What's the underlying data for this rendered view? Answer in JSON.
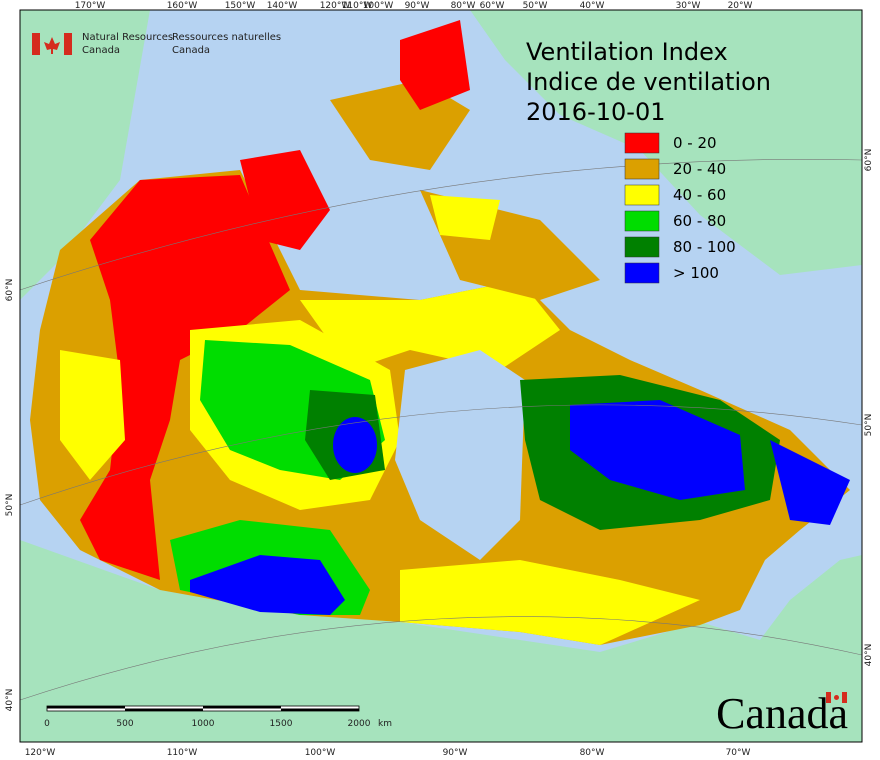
{
  "header": {
    "agency_en": [
      "Natural Resources",
      "Canada"
    ],
    "agency_fr": [
      "Ressources naturelles",
      "Canada"
    ]
  },
  "title": {
    "lines": [
      "Ventilation Index",
      "Indice de ventilation",
      "2016-10-01"
    ]
  },
  "legend": [
    {
      "label": "0 - 20",
      "color": "#ff0000"
    },
    {
      "label": "20 - 40",
      "color": "#dba000"
    },
    {
      "label": "40 - 60",
      "color": "#ffff00"
    },
    {
      "label": "60 - 80",
      "color": "#00dd00"
    },
    {
      "label": "80 - 100",
      "color": "#008000"
    },
    {
      "label": "> 100",
      "color": "#0000ff"
    }
  ],
  "graticule": {
    "top": [
      "170°W",
      "160°W",
      "150°W",
      "140°W",
      "120°W",
      "110°W",
      "100°W",
      "90°W",
      "80°W",
      "60°W",
      "50°W",
      "40°W",
      "30°W",
      "20°W"
    ],
    "bottom": [
      "120°W",
      "110°W",
      "100°W",
      "90°W",
      "80°W",
      "70°W"
    ],
    "left": [
      "60°N",
      "50°N",
      "40°N"
    ],
    "right": [
      "60°N",
      "50°N",
      "40°N"
    ]
  },
  "scale_bar": {
    "labels": [
      "0",
      "500",
      "1000",
      "1500",
      "2000"
    ],
    "unit": "km"
  },
  "wordmark": "Canada"
}
